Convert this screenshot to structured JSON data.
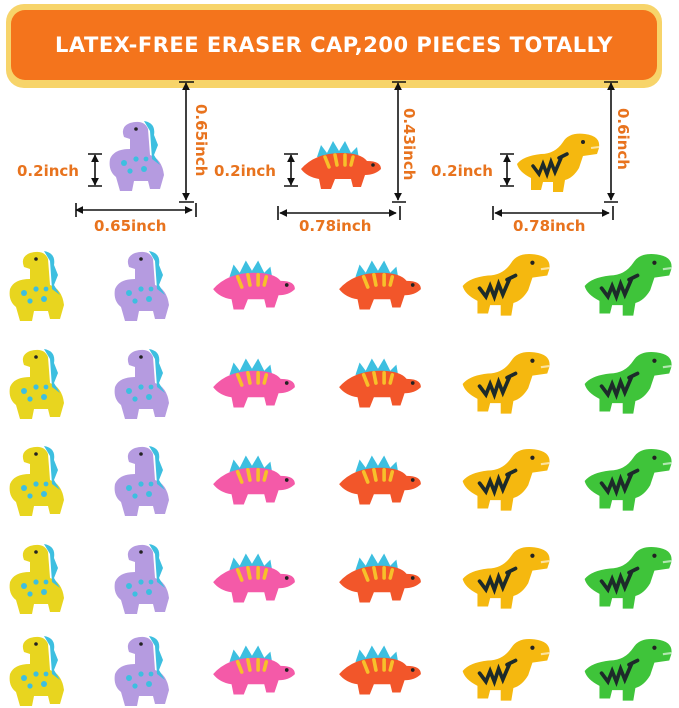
{
  "banner": {
    "text": "LATEX-FREE ERASER CAP,200 PIECES TOTALLY"
  },
  "dimensions": [
    {
      "shape": "long-neck dinosaur",
      "color": "#b59be0",
      "height": "0.65inch",
      "thickness": "0.2inch",
      "width": "0.65inch"
    },
    {
      "shape": "stegosaurus",
      "color": "#f2562a",
      "height": "0.43inch",
      "thickness": "0.2inch",
      "width": "0.78inch"
    },
    {
      "shape": "t-rex",
      "color": "#f5b80f",
      "height": "0.6inch",
      "thickness": "0.2inch",
      "width": "0.78inch"
    }
  ],
  "grid": {
    "rows": 5,
    "columns": [
      {
        "shape": "longneck",
        "color": "#e8d51f"
      },
      {
        "shape": "longneck",
        "color": "#b59be0"
      },
      {
        "shape": "stego",
        "color": "#f45aa8"
      },
      {
        "shape": "stego",
        "color": "#f2562a"
      },
      {
        "shape": "trex",
        "color": "#f5b80f"
      },
      {
        "shape": "trex",
        "color": "#3fc43a"
      }
    ]
  }
}
